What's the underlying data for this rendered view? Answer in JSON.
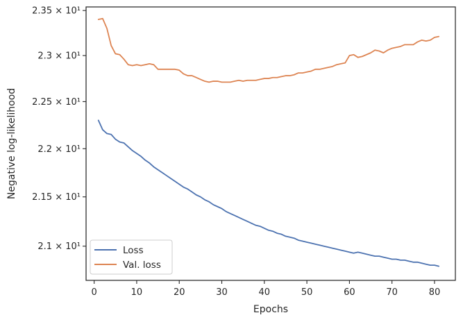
{
  "chart_data": {
    "type": "line",
    "xlabel": "Epochs",
    "ylabel": "Negative log-likelihood",
    "y_scale": "log",
    "xlim": [
      -1.9,
      84.9
    ],
    "ylim": [
      20.66,
      23.54
    ],
    "x_ticks": [
      0,
      10,
      20,
      30,
      40,
      50,
      60,
      70,
      80
    ],
    "x_tick_labels": [
      "0",
      "10",
      "20",
      "30",
      "40",
      "50",
      "60",
      "70",
      "80"
    ],
    "y_ticks": [
      21.0,
      21.5,
      22.0,
      22.5,
      23.0,
      23.5
    ],
    "y_tick_labels": [
      "2.1 × 10¹",
      "2.15 × 10¹",
      "2.2 × 10¹",
      "2.25 × 10¹",
      "2.3 × 10¹",
      "2.35 × 10¹"
    ],
    "grid": false,
    "legend_position": "lower-left",
    "series": [
      {
        "name": "Loss",
        "color": "#4c72b0",
        "x": [
          1,
          2,
          3,
          4,
          5,
          6,
          7,
          8,
          9,
          10,
          11,
          12,
          13,
          14,
          15,
          16,
          17,
          18,
          19,
          20,
          21,
          22,
          23,
          24,
          25,
          26,
          27,
          28,
          29,
          30,
          31,
          32,
          33,
          34,
          35,
          36,
          37,
          38,
          39,
          40,
          41,
          42,
          43,
          44,
          45,
          46,
          47,
          48,
          49,
          50,
          51,
          52,
          53,
          54,
          55,
          56,
          57,
          58,
          59,
          60,
          61,
          62,
          63,
          64,
          65,
          66,
          67,
          68,
          69,
          70,
          71,
          72,
          73,
          74,
          75,
          76,
          77,
          78,
          79,
          80,
          81
        ],
        "y": [
          22.3,
          22.2,
          22.16,
          22.15,
          22.1,
          22.07,
          22.06,
          22.02,
          21.98,
          21.95,
          21.92,
          21.88,
          21.85,
          21.81,
          21.78,
          21.75,
          21.72,
          21.69,
          21.66,
          21.63,
          21.6,
          21.58,
          21.55,
          21.52,
          21.5,
          21.47,
          21.45,
          21.42,
          21.4,
          21.38,
          21.35,
          21.33,
          21.31,
          21.29,
          21.27,
          21.25,
          21.23,
          21.21,
          21.2,
          21.18,
          21.16,
          21.15,
          21.13,
          21.12,
          21.1,
          21.09,
          21.08,
          21.06,
          21.05,
          21.04,
          21.03,
          21.02,
          21.01,
          21.0,
          20.99,
          20.98,
          20.97,
          20.96,
          20.95,
          20.94,
          20.93,
          20.94,
          20.93,
          20.92,
          20.91,
          20.9,
          20.9,
          20.89,
          20.88,
          20.87,
          20.87,
          20.86,
          20.86,
          20.85,
          20.84,
          20.84,
          20.83,
          20.82,
          20.81,
          20.81,
          20.8
        ]
      },
      {
        "name": "Val. loss",
        "color": "#dd8452",
        "x": [
          1,
          2,
          3,
          4,
          5,
          6,
          7,
          8,
          9,
          10,
          11,
          12,
          13,
          14,
          15,
          16,
          17,
          18,
          19,
          20,
          21,
          22,
          23,
          24,
          25,
          26,
          27,
          28,
          29,
          30,
          31,
          32,
          33,
          34,
          35,
          36,
          37,
          38,
          39,
          40,
          41,
          42,
          43,
          44,
          45,
          46,
          47,
          48,
          49,
          50,
          51,
          52,
          53,
          54,
          55,
          56,
          57,
          58,
          59,
          60,
          61,
          62,
          63,
          64,
          65,
          66,
          67,
          68,
          69,
          70,
          71,
          72,
          73,
          74,
          75,
          76,
          77,
          78,
          79,
          80,
          81
        ],
        "y": [
          23.4,
          23.41,
          23.3,
          23.11,
          23.02,
          23.01,
          22.96,
          22.9,
          22.89,
          22.9,
          22.89,
          22.9,
          22.91,
          22.9,
          22.85,
          22.85,
          22.85,
          22.85,
          22.85,
          22.84,
          22.8,
          22.78,
          22.78,
          22.76,
          22.74,
          22.72,
          22.71,
          22.72,
          22.72,
          22.71,
          22.71,
          22.71,
          22.72,
          22.73,
          22.72,
          22.73,
          22.73,
          22.73,
          22.74,
          22.75,
          22.75,
          22.76,
          22.76,
          22.77,
          22.78,
          22.78,
          22.79,
          22.81,
          22.81,
          22.82,
          22.83,
          22.85,
          22.85,
          22.86,
          22.87,
          22.88,
          22.9,
          22.91,
          22.92,
          23.0,
          23.01,
          22.98,
          22.99,
          23.01,
          23.03,
          23.06,
          23.05,
          23.03,
          23.06,
          23.08,
          23.09,
          23.1,
          23.12,
          23.12,
          23.12,
          23.15,
          23.17,
          23.16,
          23.17,
          23.2,
          23.21
        ]
      }
    ]
  }
}
